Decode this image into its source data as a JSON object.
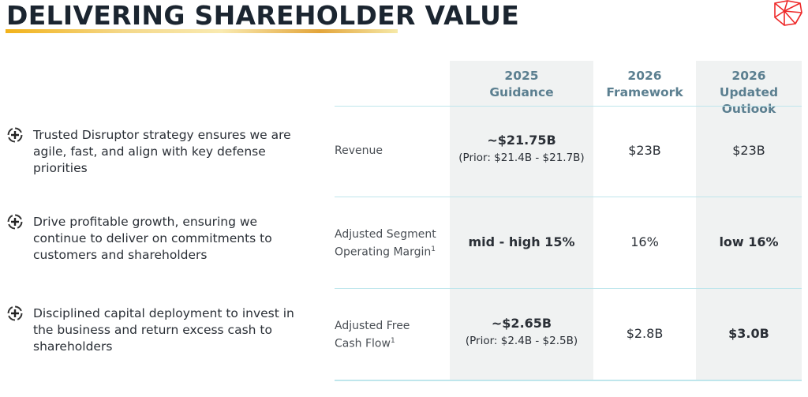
{
  "title": "DELIVERING SHAREHOLDER VALUE",
  "bullets": [
    {
      "icon": "plus-circle-icon",
      "text": "Trusted Disruptor strategy ensures we are agile, fast, and align with key defense priorities"
    },
    {
      "icon": "plus-circle-icon",
      "text": "Drive profitable growth, ensuring we continue to deliver on commitments to customers and shareholders"
    },
    {
      "icon": "plus-circle-icon",
      "text": "Disciplined capital deployment to invest in the business and return excess cash to shareholders"
    }
  ],
  "columns": [
    {
      "line1": "2025",
      "line2": "Guidance"
    },
    {
      "line1": "2026",
      "line2": "Framework"
    },
    {
      "line1": "2026",
      "line2": "Updated Outlook"
    }
  ],
  "rows": [
    {
      "label1": "Revenue",
      "label2": "",
      "sup": "",
      "guidance": "~$21.75B",
      "guidance_prior": "(Prior: $21.4B - $21.7B)",
      "framework": "$23B",
      "outlook": "$23B"
    },
    {
      "label1": "Adjusted Segment",
      "label2": "Operating Margin",
      "sup": "1",
      "guidance": "mid - high 15%",
      "guidance_prior": "",
      "framework": "16%",
      "outlook": "low 16%"
    },
    {
      "label1": "Adjusted Free",
      "label2": "Cash Flow",
      "sup": "1",
      "guidance": "~$2.65B",
      "guidance_prior": "(Prior: $2.4B - $2.5B)",
      "framework": "$2.8B",
      "outlook": "$3.0B"
    }
  ],
  "colors": {
    "accent": "#5b7f90",
    "logo": "#ee2a2a",
    "shade": "#f0f2f2",
    "rule": "#bfe6ec"
  }
}
